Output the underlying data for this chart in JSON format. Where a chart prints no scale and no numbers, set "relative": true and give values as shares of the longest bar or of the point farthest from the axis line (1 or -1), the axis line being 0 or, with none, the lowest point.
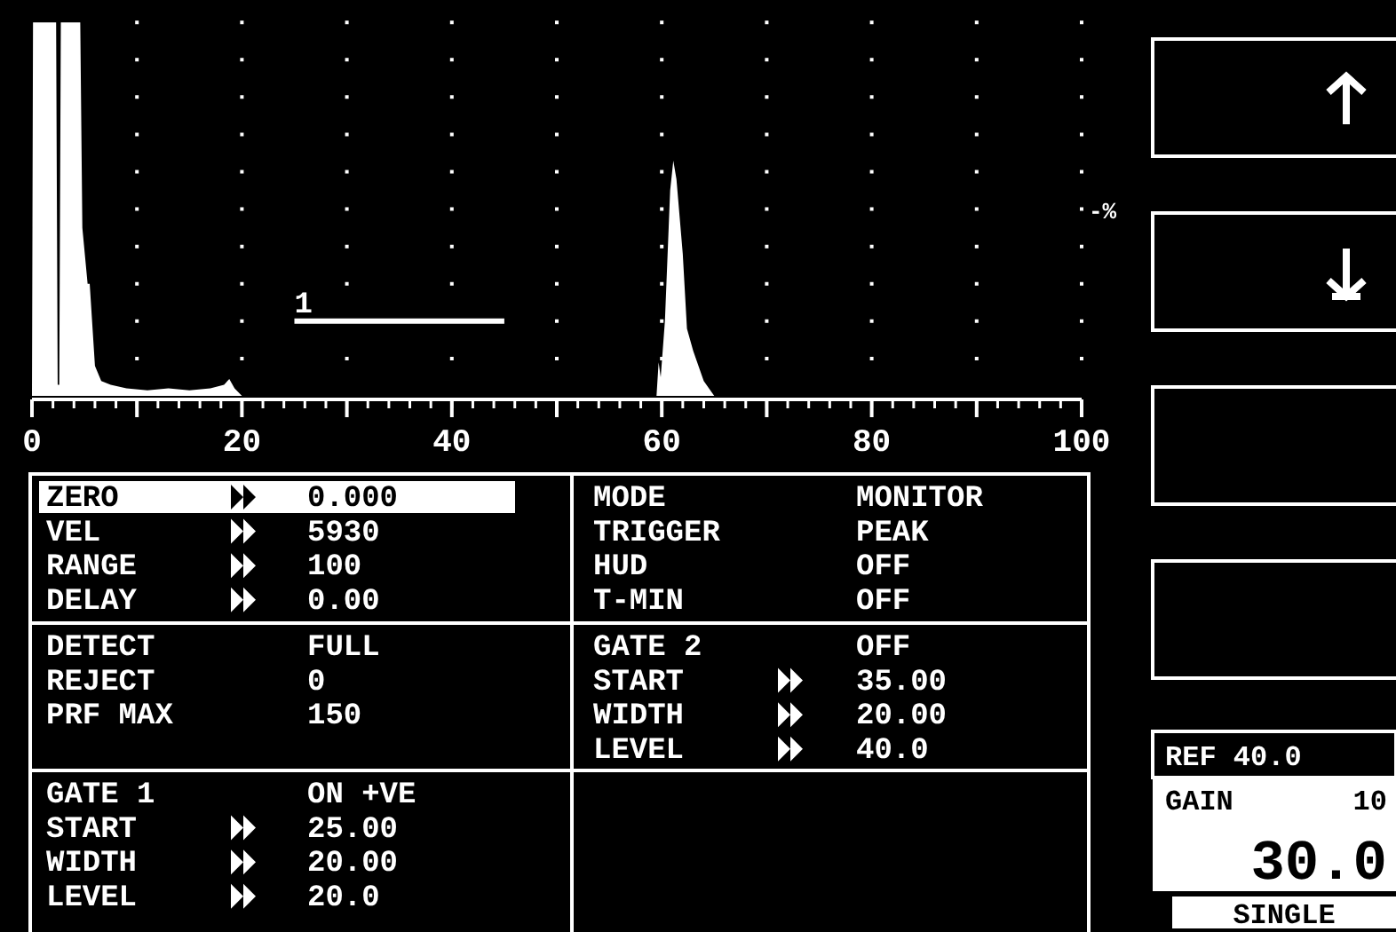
{
  "chart_data": [
    {
      "type": "area",
      "relative": true,
      "xlim": [
        0,
        100
      ],
      "xticks": [
        0,
        {
          "value": 10,
          "label": null
        },
        20,
        {
          "value": 30,
          "label": null
        },
        40,
        {
          "value": 50,
          "label": null
        },
        60,
        {
          "value": 70,
          "label": null
        },
        80,
        {
          "value": 90,
          "label": null
        },
        100
      ],
      "grid": "x",
      "series": [
        {
          "color": "#ffffff",
          "x": [
            0,
            0.1,
            2.3,
            2.45,
            2.6,
            2.75,
            4.6,
            4.8,
            5.3,
            5.5,
            6,
            6.6,
            7.5,
            9,
            11,
            13,
            15,
            17,
            18.3,
            18.8,
            19.3,
            20,
            30,
            40,
            50,
            59.5,
            59.7,
            59.9,
            60.3,
            60.8,
            61.1,
            61.4,
            62,
            62.4,
            63,
            64,
            65,
            100
          ],
          "values": [
            0,
            1,
            1,
            0.03,
            0.03,
            1,
            1,
            0.45,
            0.3,
            0.3,
            0.08,
            0.04,
            0.03,
            0.02,
            0.015,
            0.02,
            0.015,
            0.02,
            0.03,
            0.045,
            0.02,
            0,
            0,
            0,
            0,
            0,
            0.09,
            0.05,
            0.2,
            0.55,
            0.63,
            0.58,
            0.38,
            0.18,
            0.12,
            0.04,
            0,
            0
          ]
        },
        {
          "type": "line",
          "color": "#ffffff",
          "x": [
            25,
            45
          ],
          "values": [
            0.2,
            0.2
          ]
        }
      ],
      "annotations": [
        {
          "text": "1",
          "x": 25,
          "y": 0.2
        },
        "-%"
      ]
    },
    {
      "type": "other",
      "annotations": [
        "ZERO",
        "0.000",
        "VEL",
        "5930",
        "RANGE",
        "100",
        "DELAY",
        "0.00",
        "MODE",
        "MONITOR",
        "TRIGGER",
        "PEAK",
        "HUD",
        "OFF",
        "T-MIN",
        "OFF",
        "DETECT",
        "FULL",
        "REJECT",
        "0",
        "PRF MAX",
        "150",
        "GATE 2",
        "OFF",
        "START",
        "35.00",
        "WIDTH",
        "20.00",
        "LEVEL",
        "40.0",
        "GATE 1",
        "ON +VE",
        "START",
        "25.00",
        "WIDTH",
        "20.00",
        "LEVEL",
        "20.0",
        "REF 40.0",
        "GAIN",
        "10",
        "30.0",
        "SINGLE"
      ]
    }
  ]
}
